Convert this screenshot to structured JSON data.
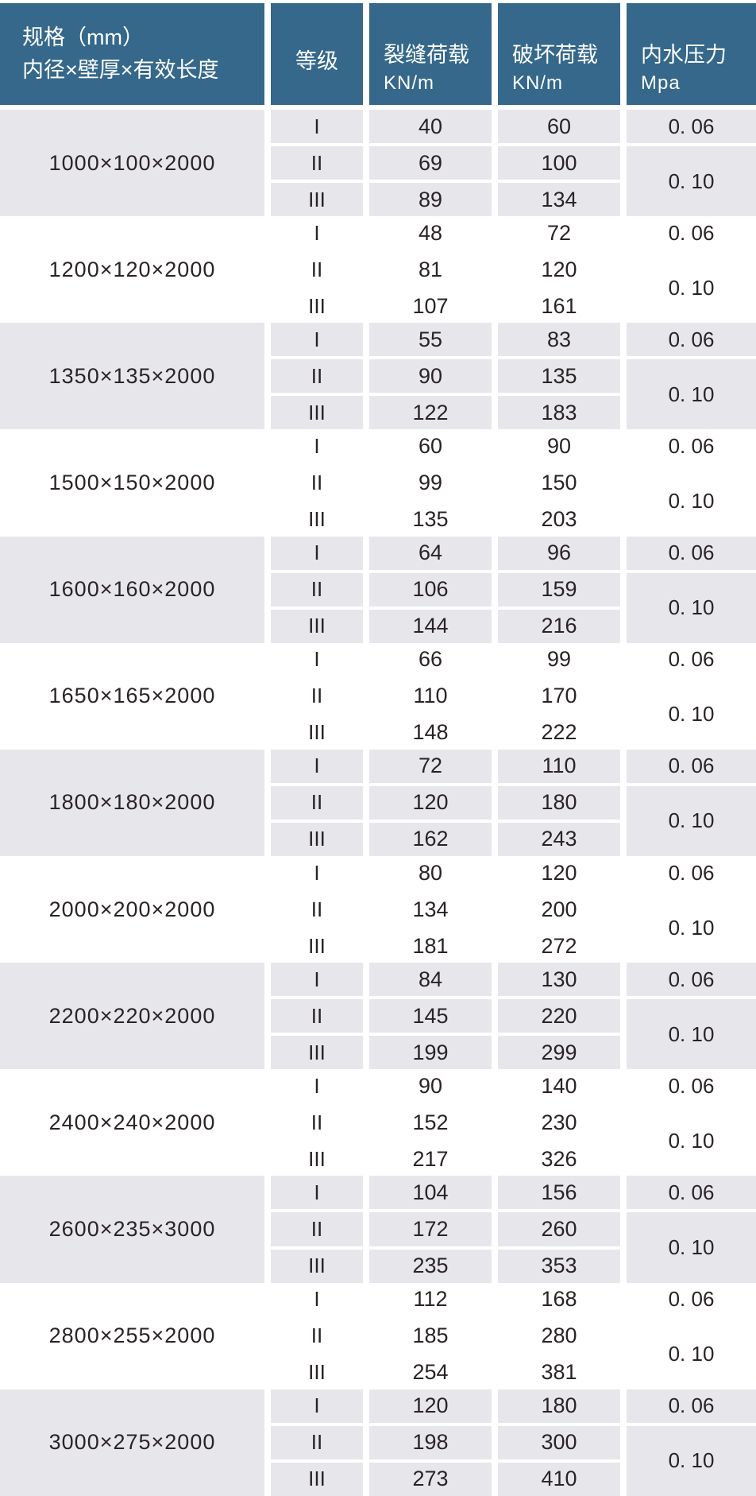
{
  "header": {
    "spec_line1": "规格（mm）",
    "spec_line2": "内径×壁厚×有效长度",
    "grade": "等级",
    "crack_load_line1": "裂缝荷载",
    "crack_load_line2": "KN/m",
    "break_load_line1": "破坏荷载",
    "break_load_line2": "KN/m",
    "pressure_line1": "内水压力",
    "pressure_line2": "Mpa"
  },
  "colors": {
    "header_bg": "#35688a",
    "header_text": "#ffffff",
    "shaded_row_bg": "#e7e7eb",
    "body_text": "#2a2326",
    "gap": "#ffffff"
  },
  "table": {
    "groups": [
      {
        "spec": "1000×100×2000",
        "shaded": true,
        "rows": [
          {
            "grade": "I",
            "crack": "40",
            "break": "60"
          },
          {
            "grade": "II",
            "crack": "69",
            "break": "100"
          },
          {
            "grade": "III",
            "crack": "89",
            "break": "134"
          }
        ],
        "pressure_grade1": "0. 06",
        "pressure_grade23": "0. 10"
      },
      {
        "spec": "1200×120×2000",
        "shaded": false,
        "rows": [
          {
            "grade": "I",
            "crack": "48",
            "break": "72"
          },
          {
            "grade": "II",
            "crack": "81",
            "break": "120"
          },
          {
            "grade": "III",
            "crack": "107",
            "break": "161"
          }
        ],
        "pressure_grade1": "0. 06",
        "pressure_grade23": "0. 10"
      },
      {
        "spec": "1350×135×2000",
        "shaded": true,
        "rows": [
          {
            "grade": "I",
            "crack": "55",
            "break": "83"
          },
          {
            "grade": "II",
            "crack": "90",
            "break": "135"
          },
          {
            "grade": "III",
            "crack": "122",
            "break": "183"
          }
        ],
        "pressure_grade1": "0. 06",
        "pressure_grade23": "0. 10"
      },
      {
        "spec": "1500×150×2000",
        "shaded": false,
        "rows": [
          {
            "grade": "I",
            "crack": "60",
            "break": "90"
          },
          {
            "grade": "II",
            "crack": "99",
            "break": "150"
          },
          {
            "grade": "III",
            "crack": "135",
            "break": "203"
          }
        ],
        "pressure_grade1": "0. 06",
        "pressure_grade23": "0. 10"
      },
      {
        "spec": "1600×160×2000",
        "shaded": true,
        "rows": [
          {
            "grade": "I",
            "crack": "64",
            "break": "96"
          },
          {
            "grade": "II",
            "crack": "106",
            "break": "159"
          },
          {
            "grade": "III",
            "crack": "144",
            "break": "216"
          }
        ],
        "pressure_grade1": "0. 06",
        "pressure_grade23": "0. 10"
      },
      {
        "spec": "1650×165×2000",
        "shaded": false,
        "rows": [
          {
            "grade": "I",
            "crack": "66",
            "break": "99"
          },
          {
            "grade": "II",
            "crack": "110",
            "break": "170"
          },
          {
            "grade": "III",
            "crack": "148",
            "break": "222"
          }
        ],
        "pressure_grade1": "0. 06",
        "pressure_grade23": "0. 10"
      },
      {
        "spec": "1800×180×2000",
        "shaded": true,
        "rows": [
          {
            "grade": "I",
            "crack": "72",
            "break": "110"
          },
          {
            "grade": "II",
            "crack": "120",
            "break": "180"
          },
          {
            "grade": "III",
            "crack": "162",
            "break": "243"
          }
        ],
        "pressure_grade1": "0. 06",
        "pressure_grade23": "0. 10"
      },
      {
        "spec": "2000×200×2000",
        "shaded": false,
        "rows": [
          {
            "grade": "I",
            "crack": "80",
            "break": "120"
          },
          {
            "grade": "II",
            "crack": "134",
            "break": "200"
          },
          {
            "grade": "III",
            "crack": "181",
            "break": "272"
          }
        ],
        "pressure_grade1": "0. 06",
        "pressure_grade23": "0. 10"
      },
      {
        "spec": "2200×220×2000",
        "shaded": true,
        "rows": [
          {
            "grade": "I",
            "crack": "84",
            "break": "130"
          },
          {
            "grade": "II",
            "crack": "145",
            "break": "220"
          },
          {
            "grade": "III",
            "crack": "199",
            "break": "299"
          }
        ],
        "pressure_grade1": "0. 06",
        "pressure_grade23": "0. 10"
      },
      {
        "spec": "2400×240×2000",
        "shaded": false,
        "rows": [
          {
            "grade": "I",
            "crack": "90",
            "break": "140"
          },
          {
            "grade": "II",
            "crack": "152",
            "break": "230"
          },
          {
            "grade": "III",
            "crack": "217",
            "break": "326"
          }
        ],
        "pressure_grade1": "0. 06",
        "pressure_grade23": "0. 10"
      },
      {
        "spec": "2600×235×3000",
        "shaded": true,
        "rows": [
          {
            "grade": "I",
            "crack": "104",
            "break": "156"
          },
          {
            "grade": "II",
            "crack": "172",
            "break": "260"
          },
          {
            "grade": "III",
            "crack": "235",
            "break": "353"
          }
        ],
        "pressure_grade1": "0. 06",
        "pressure_grade23": "0. 10"
      },
      {
        "spec": "2800×255×2000",
        "shaded": false,
        "rows": [
          {
            "grade": "I",
            "crack": "112",
            "break": "168"
          },
          {
            "grade": "II",
            "crack": "185",
            "break": "280"
          },
          {
            "grade": "III",
            "crack": "254",
            "break": "381"
          }
        ],
        "pressure_grade1": "0. 06",
        "pressure_grade23": "0. 10"
      },
      {
        "spec": "3000×275×2000",
        "shaded": true,
        "rows": [
          {
            "grade": "I",
            "crack": "120",
            "break": "180"
          },
          {
            "grade": "II",
            "crack": "198",
            "break": "300"
          },
          {
            "grade": "III",
            "crack": "273",
            "break": "410"
          }
        ],
        "pressure_grade1": "0. 06",
        "pressure_grade23": "0. 10"
      }
    ]
  }
}
